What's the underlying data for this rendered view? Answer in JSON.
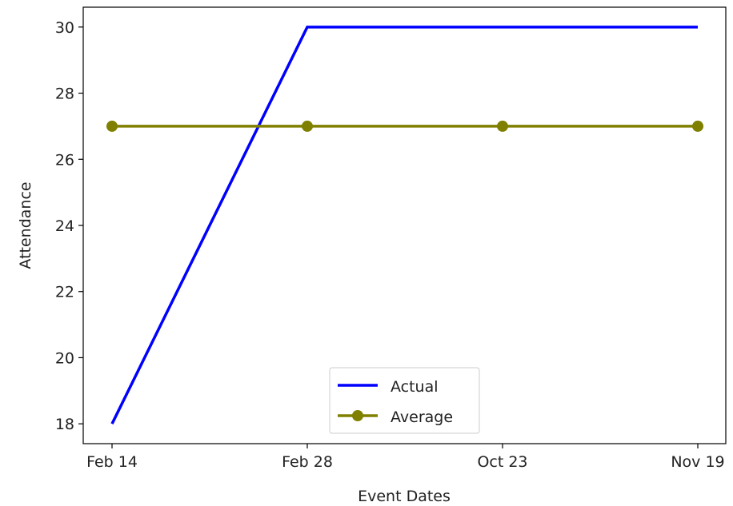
{
  "chart_data": {
    "type": "line",
    "categories": [
      "Feb 14",
      "Feb 28",
      "Oct 23",
      "Nov 19"
    ],
    "xlabel": "Event Dates",
    "ylabel": "Attendance",
    "ylim": [
      17.4,
      30.6
    ],
    "yticks": [
      18,
      20,
      22,
      24,
      26,
      28,
      30
    ],
    "grid": false,
    "legend_position": "lower center",
    "series": [
      {
        "name": "Actual",
        "values": [
          18,
          30,
          30,
          30
        ],
        "color": "#0000ff",
        "marker": "none"
      },
      {
        "name": "Average",
        "values": [
          27,
          27,
          27,
          27
        ],
        "color": "#808000",
        "marker": "circle"
      }
    ]
  }
}
